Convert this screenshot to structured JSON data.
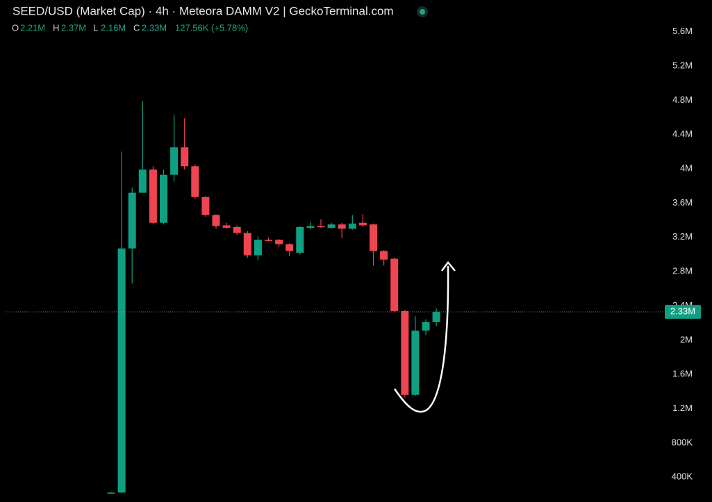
{
  "chart_data": {
    "type": "candlestick",
    "title": "SEED/USD (Market Cap) · 4h · Meteora DAMM V2 | GeckoTerminal.com",
    "legend": {
      "open_key": "O",
      "open": "2.21M",
      "high_key": "H",
      "high": "2.37M",
      "low_key": "L",
      "low": "2.16M",
      "close_key": "C",
      "close": "2.33M",
      "change": "127.56K (+5.78%)"
    },
    "open": [
      220000,
      220000,
      3070000,
      3720000,
      3990000,
      3370000,
      3930000,
      4250000,
      4030000,
      3670000,
      3460000,
      3340000,
      3320000,
      3250000,
      2990000,
      3170000,
      3170000,
      3120000,
      3020000,
      3310000,
      3330000,
      3310000,
      3350000,
      3300000,
      3370000,
      3350000,
      3040000,
      2950000,
      2340000,
      1360000,
      2110000,
      2210000
    ],
    "high": [
      230000,
      4200000,
      3780000,
      4790000,
      4030000,
      3990000,
      4630000,
      4590000,
      4050000,
      3680000,
      3470000,
      3370000,
      3340000,
      3270000,
      3210000,
      3200000,
      3180000,
      3130000,
      3330000,
      3380000,
      3410000,
      3370000,
      3370000,
      3460000,
      3470000,
      3360000,
      3050000,
      2960000,
      2350000,
      2280000,
      2240000,
      2370000
    ],
    "low": [
      210000,
      210000,
      2660000,
      3720000,
      3350000,
      3350000,
      3850000,
      3990000,
      3650000,
      3440000,
      3300000,
      3300000,
      3230000,
      2960000,
      2930000,
      3150000,
      3090000,
      2980000,
      3000000,
      3290000,
      3310000,
      3300000,
      3190000,
      3290000,
      3320000,
      2870000,
      2870000,
      2330000,
      1330000,
      1350000,
      2060000,
      2160000
    ],
    "close": [
      220000,
      3070000,
      3720000,
      3990000,
      3370000,
      3930000,
      4250000,
      4030000,
      3670000,
      3460000,
      3330000,
      3310000,
      3250000,
      2990000,
      3170000,
      3160000,
      3120000,
      3040000,
      3320000,
      3330000,
      3320000,
      3350000,
      3300000,
      3360000,
      3340000,
      3040000,
      2940000,
      2340000,
      1360000,
      2110000,
      2210000,
      2330000
    ],
    "up_color": "#0f9f82",
    "down_color": "#ef4452",
    "ylim": [
      110000,
      5970000
    ],
    "yticks": [
      {
        "value": 400000,
        "label": "400K"
      },
      {
        "value": 800000,
        "label": "800K"
      },
      {
        "value": 1200000,
        "label": "1.2M"
      },
      {
        "value": 1600000,
        "label": "1.6M"
      },
      {
        "value": 2000000,
        "label": "2M"
      },
      {
        "value": 2400000,
        "label": "2.4M"
      },
      {
        "value": 2800000,
        "label": "2.8M"
      },
      {
        "value": 3200000,
        "label": "3.2M"
      },
      {
        "value": 3600000,
        "label": "3.6M"
      },
      {
        "value": 4000000,
        "label": "4M"
      },
      {
        "value": 4400000,
        "label": "4.4M"
      },
      {
        "value": 4800000,
        "label": "4.8M"
      },
      {
        "value": 5200000,
        "label": "5.2M"
      },
      {
        "value": 5600000,
        "label": "5.6M"
      }
    ],
    "price_line": {
      "value": 2330000,
      "label": "2.33M"
    }
  }
}
